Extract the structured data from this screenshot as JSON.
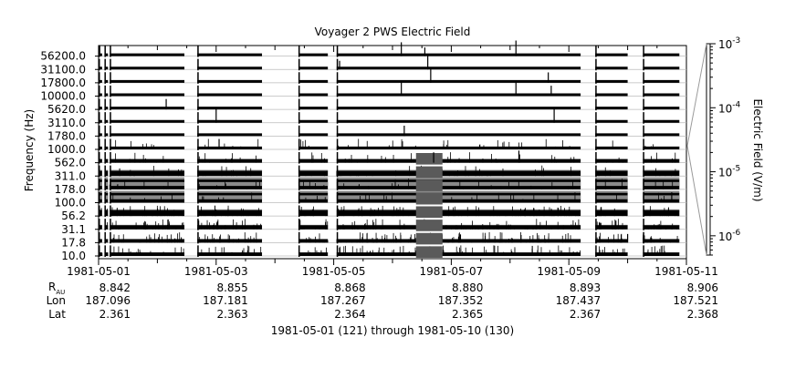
{
  "chart_data": {
    "type": "spectrogram-line",
    "title": "Voyager 2 PWS Electric Field",
    "ylabel": "Frequency (Hz)",
    "colorbar_label": "Electric Field (V/m)",
    "colorbar_ticks": [
      {
        "value": 0.001,
        "mantissa": "10",
        "exponent": "-3"
      },
      {
        "value": 0.0001,
        "mantissa": "10",
        "exponent": "-4"
      },
      {
        "value": 1e-05,
        "mantissa": "10",
        "exponent": "-5"
      },
      {
        "value": 1e-06,
        "mantissa": "10",
        "exponent": "-6"
      }
    ],
    "colorbar_range": [
      5e-07,
      0.001
    ],
    "channels": [
      {
        "label": "56200.0",
        "fill": 0.1,
        "gray": 0.0
      },
      {
        "label": "31100.0",
        "fill": 0.1,
        "gray": 0.0
      },
      {
        "label": "17800.0",
        "fill": 0.1,
        "gray": 0.0
      },
      {
        "label": "10000.0",
        "fill": 0.1,
        "gray": 0.0
      },
      {
        "label": "5620.0",
        "fill": 0.1,
        "gray": 0.0
      },
      {
        "label": "3110.0",
        "fill": 0.1,
        "gray": 0.0
      },
      {
        "label": "1780.0",
        "fill": 0.15,
        "gray": 0.0
      },
      {
        "label": "1000.0",
        "fill": 0.18,
        "gray": 0.05
      },
      {
        "label": "562.0",
        "fill": 0.3,
        "gray": 0.1
      },
      {
        "label": "311.0",
        "fill": 0.45,
        "gray": 0.2
      },
      {
        "label": "178.0",
        "fill": 0.85,
        "gray": 0.5
      },
      {
        "label": "100.0",
        "fill": 0.85,
        "gray": 0.45
      },
      {
        "label": "56.2",
        "fill": 0.5,
        "gray": 0.2
      },
      {
        "label": "31.1",
        "fill": 0.35,
        "gray": 0.1
      },
      {
        "label": "17.8",
        "fill": 0.3,
        "gray": 0.05
      },
      {
        "label": "10.0",
        "fill": 0.3,
        "gray": 0.05
      }
    ],
    "x_range_days": [
      0,
      10
    ],
    "data_segments": [
      {
        "start": 0.0,
        "end": 0.06
      },
      {
        "start": 0.1,
        "end": 0.16
      },
      {
        "start": 0.19,
        "end": 1.46
      },
      {
        "start": 1.68,
        "end": 2.78
      },
      {
        "start": 3.4,
        "end": 3.9
      },
      {
        "start": 4.05,
        "end": 8.2
      },
      {
        "start": 8.45,
        "end": 9.0
      },
      {
        "start": 9.26,
        "end": 9.88
      }
    ],
    "bursts": [
      {
        "day": 0.02,
        "channel": 0,
        "height": 0.6
      },
      {
        "day": 1.15,
        "channel": 4,
        "height": 0.6
      },
      {
        "day": 2.0,
        "channel": 5,
        "height": 0.9
      },
      {
        "day": 2.05,
        "channel": 7,
        "height": 0.6
      },
      {
        "day": 4.1,
        "channel": 1,
        "height": 0.5
      },
      {
        "day": 5.15,
        "channel": 0,
        "height": 0.8
      },
      {
        "day": 5.15,
        "channel": 3,
        "height": 0.8
      },
      {
        "day": 5.2,
        "channel": 6,
        "height": 0.6
      },
      {
        "day": 5.55,
        "channel": 0,
        "height": 0.5
      },
      {
        "day": 5.6,
        "channel": 1,
        "height": 0.8
      },
      {
        "day": 5.65,
        "channel": 2,
        "height": 0.8
      },
      {
        "day": 5.7,
        "channel": 8,
        "height": 0.6
      },
      {
        "day": 7.1,
        "channel": 0,
        "height": 0.9
      },
      {
        "day": 7.1,
        "channel": 3,
        "height": 0.8
      },
      {
        "day": 7.15,
        "channel": 8,
        "height": 0.7
      },
      {
        "day": 7.65,
        "channel": 2,
        "height": 0.6
      },
      {
        "day": 7.7,
        "channel": 3,
        "height": 0.6
      },
      {
        "day": 7.75,
        "channel": 5,
        "height": 0.9
      },
      {
        "day": 9.75,
        "channel": 11,
        "height": 0.6
      },
      {
        "day": 8.8,
        "channel": 13,
        "height": 0.5
      },
      {
        "day": 9.0,
        "channel": 14,
        "height": 0.5
      }
    ],
    "dense_region": {
      "start": 5.4,
      "end": 5.85,
      "channel_from": 8
    },
    "x_ticks": [
      {
        "day": 0,
        "date": "1981-05-01",
        "rau": "8.842",
        "lon": "187.096",
        "lat": "2.361"
      },
      {
        "day": 2,
        "date": "1981-05-03",
        "rau": "8.855",
        "lon": "187.181",
        "lat": "2.363"
      },
      {
        "day": 4,
        "date": "1981-05-05",
        "rau": "8.868",
        "lon": "187.267",
        "lat": "2.364"
      },
      {
        "day": 6,
        "date": "1981-05-07",
        "rau": "8.880",
        "lon": "187.352",
        "lat": "2.365"
      },
      {
        "day": 8,
        "date": "1981-05-09",
        "rau": "8.893",
        "lon": "187.437",
        "lat": "2.367"
      },
      {
        "day": 10,
        "date": "1981-05-11",
        "rau": "8.906",
        "lon": "187.521",
        "lat": "2.368"
      }
    ],
    "row_labels": {
      "rau_main": "R",
      "rau_sub": "AU",
      "lon": "Lon",
      "lat": "Lat"
    },
    "footer": "1981-05-01 (121) through 1981-05-10 (130)"
  }
}
